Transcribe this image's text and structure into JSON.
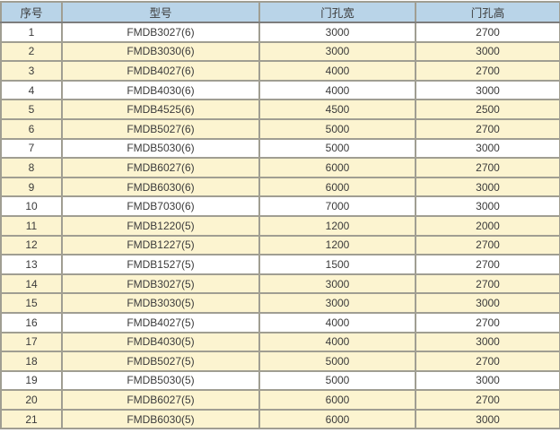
{
  "table": {
    "columns": [
      "序号",
      "型号",
      "门孔宽",
      "门孔高"
    ],
    "rows": [
      [
        "1",
        "FMDB3027(6)",
        "3000",
        "2700"
      ],
      [
        "2",
        "FMDB3030(6)",
        "3000",
        "3000"
      ],
      [
        "3",
        "FMDB4027(6)",
        "4000",
        "2700"
      ],
      [
        "4",
        "FMDB4030(6)",
        "4000",
        "3000"
      ],
      [
        "5",
        "FMDB4525(6)",
        "4500",
        "2500"
      ],
      [
        "6",
        "FMDB5027(6)",
        "5000",
        "2700"
      ],
      [
        "7",
        "FMDB5030(6)",
        "5000",
        "3000"
      ],
      [
        "8",
        "FMDB6027(6)",
        "6000",
        "2700"
      ],
      [
        "9",
        "FMDB6030(6)",
        "6000",
        "3000"
      ],
      [
        "10",
        "FMDB7030(6)",
        "7000",
        "3000"
      ],
      [
        "11",
        "FMDB1220(5)",
        "1200",
        "2000"
      ],
      [
        "12",
        "FMDB1227(5)",
        "1200",
        "2700"
      ],
      [
        "13",
        "FMDB1527(5)",
        "1500",
        "2700"
      ],
      [
        "14",
        "FMDB3027(5)",
        "3000",
        "2700"
      ],
      [
        "15",
        "FMDB3030(5)",
        "3000",
        "3000"
      ],
      [
        "16",
        "FMDB4027(5)",
        "4000",
        "2700"
      ],
      [
        "17",
        "FMDB4030(5)",
        "4000",
        "3000"
      ],
      [
        "18",
        "FMDB5027(5)",
        "5000",
        "2700"
      ],
      [
        "19",
        "FMDB5030(5)",
        "5000",
        "3000"
      ],
      [
        "20",
        "FMDB6027(5)",
        "6000",
        "2700"
      ],
      [
        "21",
        "FMDB6030(5)",
        "6000",
        "3000"
      ]
    ]
  },
  "colors": {
    "header_bg": "#b9d4e8",
    "header_border": "#7d7d7d",
    "row_white": "#ffffff",
    "row_cream": "#fcf4d0",
    "grid_border": "#a09e92",
    "outer_border": "#8c8c8c",
    "text": "#3b3b3b"
  }
}
